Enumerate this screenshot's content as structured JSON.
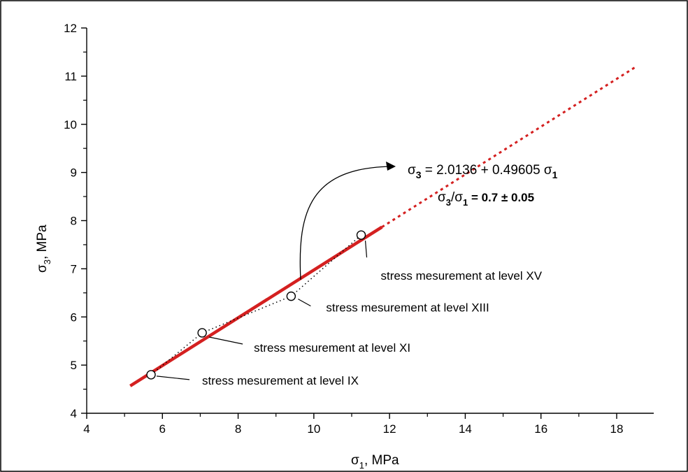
{
  "chart_data": {
    "type": "scatter",
    "xlabel": {
      "symbol": "σ",
      "sub": "1",
      "suffix": ",   MPa"
    },
    "ylabel": {
      "symbol": "σ",
      "sub": "3",
      "suffix": ",   MPa"
    },
    "xlim": [
      4,
      19
    ],
    "ylim": [
      4,
      12
    ],
    "x_ticks": [
      4,
      6,
      8,
      10,
      12,
      14,
      16,
      18
    ],
    "y_ticks": [
      4,
      5,
      6,
      7,
      8,
      9,
      10,
      11,
      12
    ],
    "x_tick_labels": [
      "4",
      "6",
      "8",
      "10",
      "12",
      "14",
      "16",
      "18"
    ],
    "y_tick_labels": [
      "4",
      "5",
      "6",
      "7",
      "8",
      "9",
      "10",
      "11",
      "12"
    ],
    "grid": false,
    "points": [
      {
        "x": 5.7,
        "y": 4.8,
        "label": "stress mesurement at level IX"
      },
      {
        "x": 7.05,
        "y": 5.67,
        "label": "stress mesurement at level XI"
      },
      {
        "x": 9.4,
        "y": 6.43,
        "label": "stress mesurement at level XIII"
      },
      {
        "x": 11.25,
        "y": 7.7,
        "label": "stress mesurement at level XV"
      }
    ],
    "fit_line": {
      "intercept": 2.0136,
      "slope": 0.49605,
      "solid_range": [
        5.15,
        11.8
      ],
      "dotted_range": [
        11.8,
        18.5
      ],
      "color": "#d42020"
    },
    "equation": {
      "lhs_symbol": "σ",
      "lhs_sub": "3",
      "rhs_text": " = 2.0136 + 0.49605 ",
      "rhs_symbol": "σ",
      "rhs_sub": "1"
    },
    "ratio": {
      "num_symbol": "σ",
      "num_sub": "3",
      "slash": "/",
      "den_symbol": "σ",
      "den_sub": "1",
      "value_text": " = 0.7 ± 0.05"
    }
  }
}
